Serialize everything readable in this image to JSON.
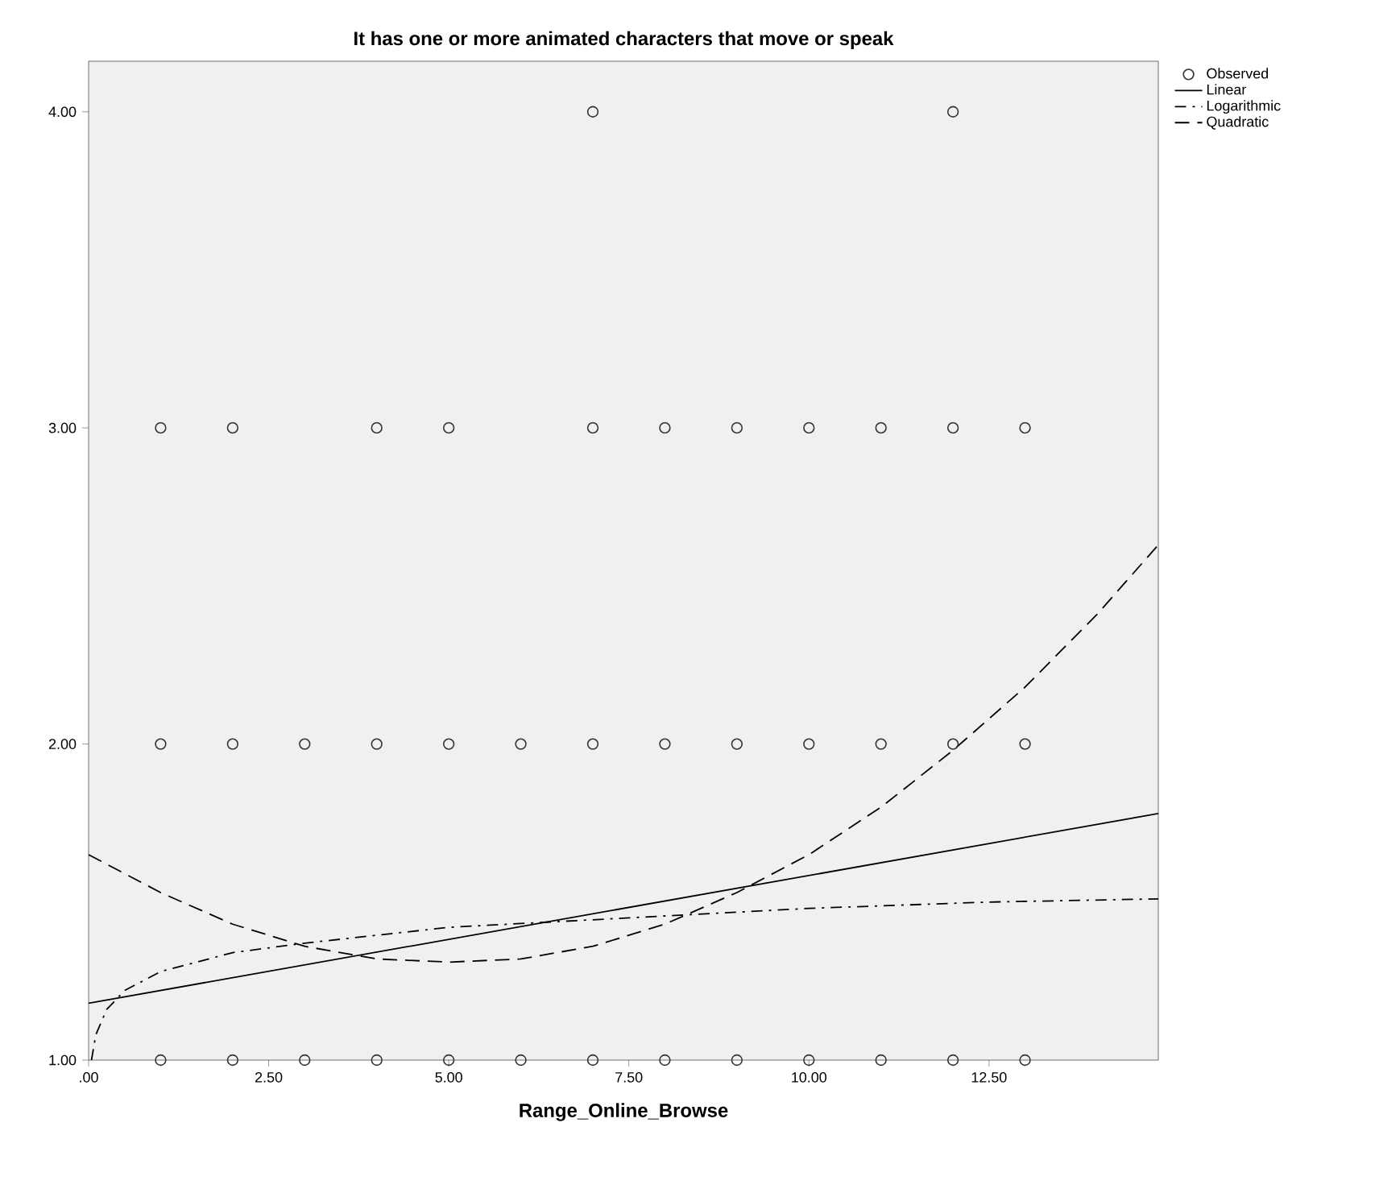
{
  "chart_data": {
    "type": "scatter",
    "title": "It has one or more animated characters that move or speak",
    "xlabel": "Range_Online_Browse",
    "xlim": [
      0,
      14.85
    ],
    "ylim": [
      1,
      4.16
    ],
    "xticks": [
      {
        "value": 0,
        "label": ".00"
      },
      {
        "value": 2.5,
        "label": "2.50"
      },
      {
        "value": 5,
        "label": "5.00"
      },
      {
        "value": 7.5,
        "label": "7.50"
      },
      {
        "value": 10,
        "label": "10.00"
      },
      {
        "value": 12.5,
        "label": "12.50"
      }
    ],
    "yticks": [
      {
        "value": 1,
        "label": "1.00"
      },
      {
        "value": 2,
        "label": "2.00"
      },
      {
        "value": 3,
        "label": "3.00"
      },
      {
        "value": 4,
        "label": "4.00"
      }
    ],
    "grid": false,
    "legend": "top right",
    "series": [
      {
        "name": "Observed",
        "marker": "circle",
        "color": "#333333",
        "x": [
          1,
          2,
          3,
          4,
          5,
          6,
          7,
          8,
          9,
          10,
          11,
          12,
          13,
          1,
          2,
          3,
          4,
          5,
          6,
          7,
          8,
          9,
          10,
          11,
          12,
          13,
          1,
          2,
          4,
          5,
          7,
          8,
          9,
          10,
          11,
          12,
          13,
          7,
          12
        ],
        "values": [
          1,
          1,
          1,
          1,
          1,
          1,
          1,
          1,
          1,
          1,
          1,
          1,
          1,
          2,
          2,
          2,
          2,
          2,
          2,
          2,
          2,
          2,
          2,
          2,
          2,
          2,
          3,
          3,
          3,
          3,
          3,
          3,
          3,
          3,
          3,
          3,
          3,
          4,
          4
        ]
      },
      {
        "name": "Linear",
        "type": "line",
        "line_style": "solid",
        "color": "#000000",
        "x": [
          0,
          14.85
        ],
        "values": [
          1.18,
          1.78
        ]
      },
      {
        "name": "Logarithmic",
        "type": "line",
        "line_style": "dashdot",
        "color": "#000000",
        "x": [
          0.04,
          0.1,
          0.25,
          0.5,
          1,
          2,
          3,
          5,
          7.5,
          10,
          12.5,
          14.85
        ],
        "values": [
          1.0,
          1.08,
          1.16,
          1.22,
          1.28,
          1.34,
          1.37,
          1.42,
          1.45,
          1.48,
          1.5,
          1.51
        ]
      },
      {
        "name": "Quadratic",
        "type": "line",
        "line_style": "dashed",
        "color": "#000000",
        "x": [
          0,
          1,
          2,
          3,
          4,
          5,
          6,
          7,
          8,
          9,
          10,
          11,
          12,
          13,
          14,
          14.85
        ],
        "values": [
          1.65,
          1.53,
          1.43,
          1.36,
          1.32,
          1.31,
          1.32,
          1.36,
          1.43,
          1.53,
          1.65,
          1.8,
          1.98,
          2.18,
          2.41,
          2.63
        ]
      }
    ]
  }
}
